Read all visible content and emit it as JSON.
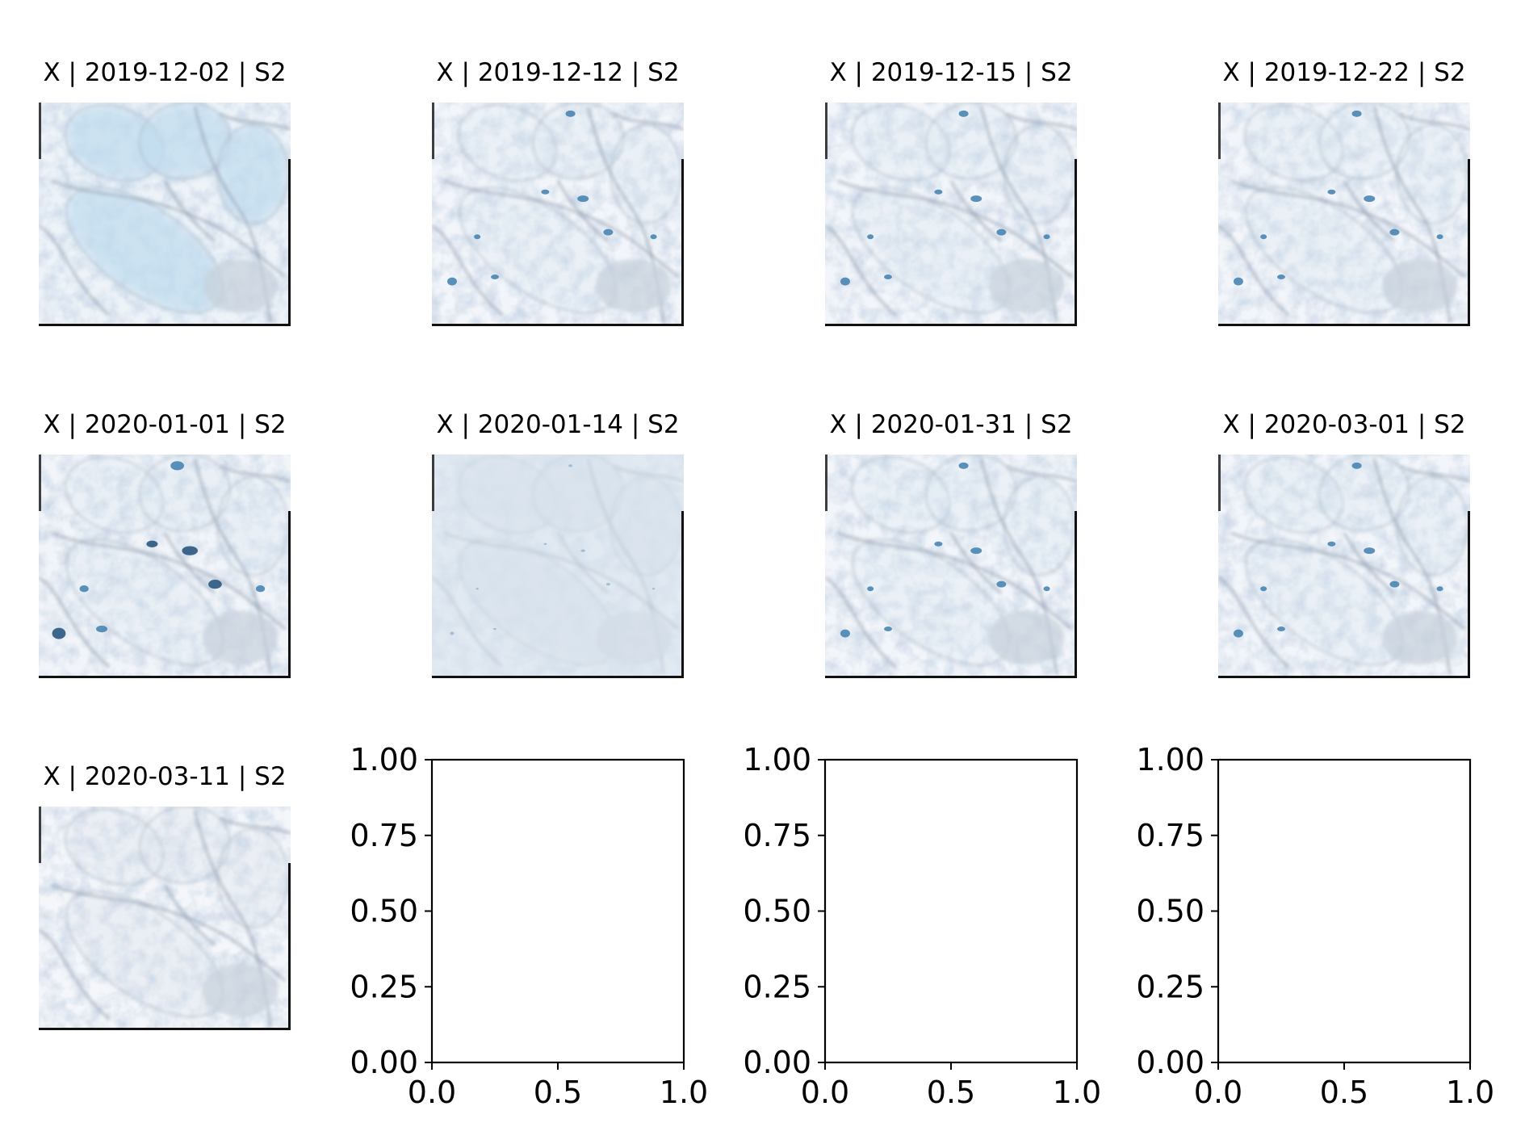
{
  "figure": {
    "panels": [
      {
        "title": "X | 2019-12-02 | S2",
        "kind": "image",
        "scene": "tinted"
      },
      {
        "title": "X | 2019-12-12 | S2",
        "kind": "image",
        "scene": "ponds"
      },
      {
        "title": "X | 2019-12-15 | S2",
        "kind": "image",
        "scene": "ponds"
      },
      {
        "title": "X | 2019-12-22 | S2",
        "kind": "image",
        "scene": "ponds"
      },
      {
        "title": "X | 2020-01-01 | S2",
        "kind": "image",
        "scene": "ponds-dark"
      },
      {
        "title": "X | 2020-01-14 | S2",
        "kind": "image",
        "scene": "hazy"
      },
      {
        "title": "X | 2020-01-31 | S2",
        "kind": "image",
        "scene": "ponds"
      },
      {
        "title": "X | 2020-03-01 | S2",
        "kind": "image",
        "scene": "ponds"
      },
      {
        "title": "X | 2020-03-11 | S2",
        "kind": "image",
        "scene": "snow"
      },
      {
        "title": "",
        "kind": "empty-axes"
      },
      {
        "title": "",
        "kind": "empty-axes"
      },
      {
        "title": "",
        "kind": "empty-axes"
      }
    ],
    "empty_axes": {
      "xlim": [
        0,
        1
      ],
      "ylim": [
        0,
        1
      ],
      "xticks": [
        "0.0",
        "0.5",
        "1.0"
      ],
      "yticks": [
        "0.00",
        "0.25",
        "0.50",
        "0.75",
        "1.00"
      ]
    }
  }
}
